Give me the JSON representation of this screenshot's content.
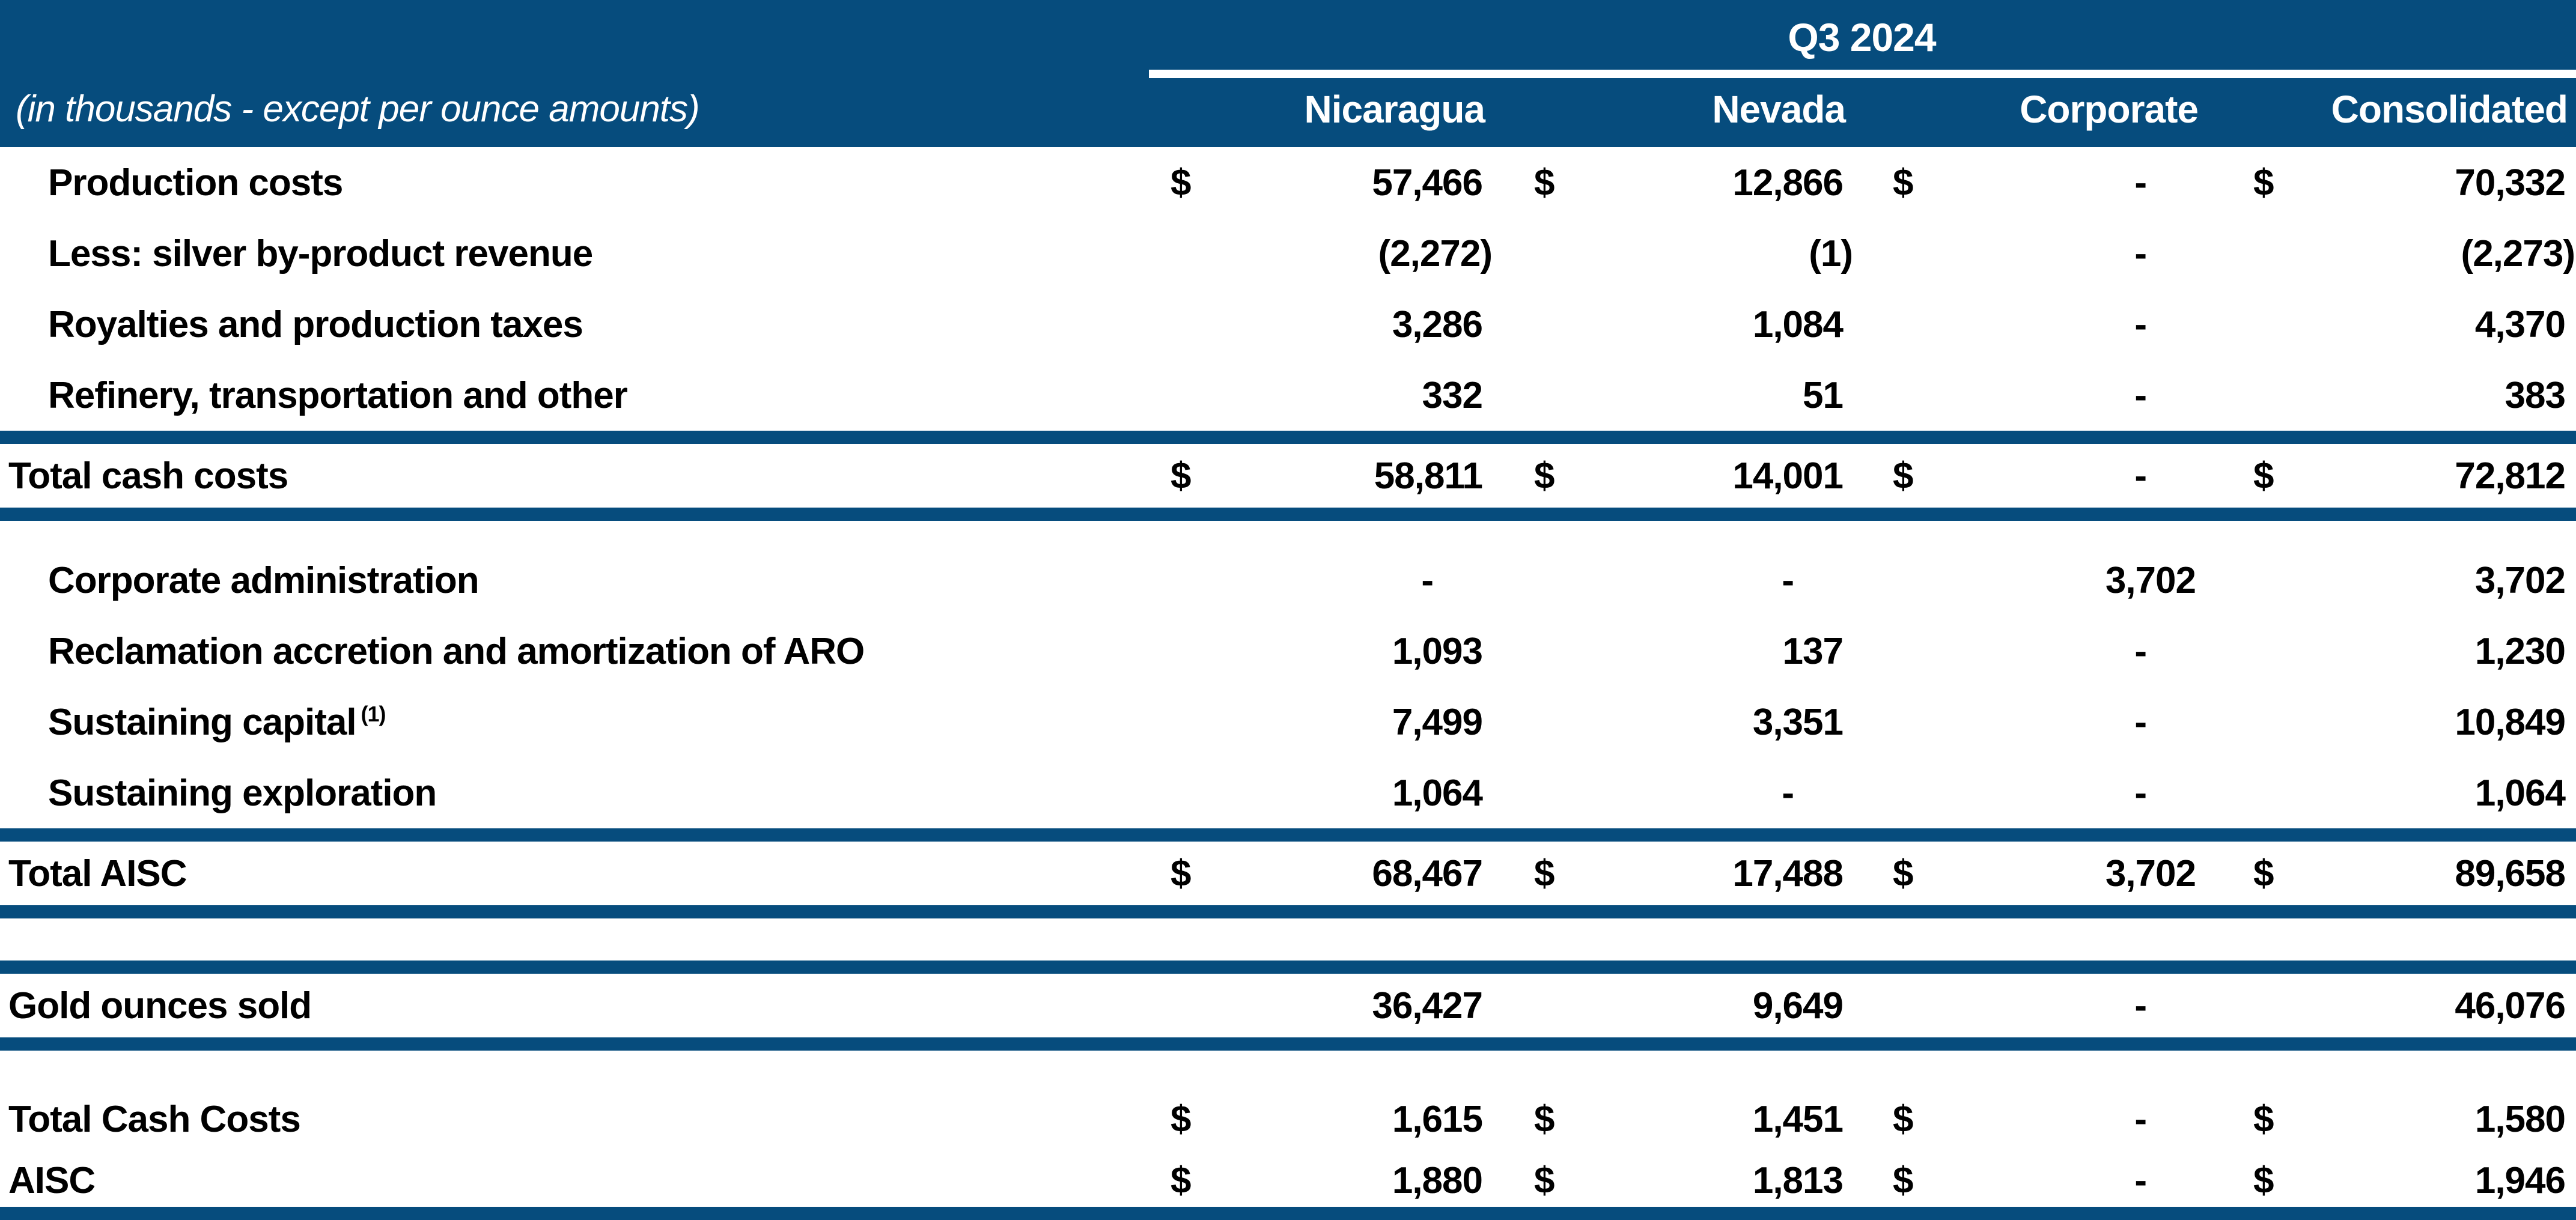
{
  "header": {
    "caption": "(in thousands - except per ounce amounts)",
    "period": "Q3 2024",
    "columns": [
      "Nicaragua",
      "Nevada",
      "Corporate",
      "Consolidated"
    ]
  },
  "colors": {
    "band_blue": "#064C7D",
    "text": "#000000",
    "background": "#FFFFFF"
  },
  "rows": [
    {
      "type": "item",
      "label": "Production costs",
      "cells": [
        {
          "d": "$",
          "v": "57,466"
        },
        {
          "d": "$",
          "v": "12,866"
        },
        {
          "d": "$",
          "v": "-",
          "dash": true
        },
        {
          "d": "$",
          "v": "70,332"
        }
      ]
    },
    {
      "type": "item",
      "label": "Less: silver by-product revenue",
      "cells": [
        {
          "v": "(2,272)",
          "neg": true
        },
        {
          "v": "(1)",
          "neg": true
        },
        {
          "v": "-",
          "dash": true
        },
        {
          "v": "(2,273)",
          "neg": true
        }
      ]
    },
    {
      "type": "item",
      "label": "Royalties and production taxes",
      "cells": [
        {
          "v": "3,286"
        },
        {
          "v": "1,084"
        },
        {
          "v": "-",
          "dash": true
        },
        {
          "v": "4,370"
        }
      ]
    },
    {
      "type": "item",
      "label": "Refinery, transportation and other",
      "cells": [
        {
          "v": "332"
        },
        {
          "v": "51"
        },
        {
          "v": "-",
          "dash": true
        },
        {
          "v": "383"
        }
      ]
    },
    {
      "type": "line"
    },
    {
      "type": "total",
      "label": "Total cash costs",
      "cells": [
        {
          "d": "$",
          "v": "58,811"
        },
        {
          "d": "$",
          "v": "14,001"
        },
        {
          "d": "$",
          "v": "-",
          "dash": true
        },
        {
          "d": "$",
          "v": "72,812"
        }
      ]
    },
    {
      "type": "line"
    },
    {
      "type": "spacer-a"
    },
    {
      "type": "item",
      "label": "Corporate administration",
      "cells": [
        {
          "v": "-",
          "dash": true
        },
        {
          "v": "-",
          "dash": true
        },
        {
          "v": "3,702"
        },
        {
          "v": "3,702"
        }
      ]
    },
    {
      "type": "item",
      "label": "Reclamation accretion and amortization of ARO",
      "cells": [
        {
          "v": "1,093"
        },
        {
          "v": "137"
        },
        {
          "v": "-",
          "dash": true
        },
        {
          "v": "1,230"
        }
      ]
    },
    {
      "type": "item",
      "label": "Sustaining capital",
      "sup": "(1)",
      "cells": [
        {
          "v": "7,499"
        },
        {
          "v": "3,351"
        },
        {
          "v": "-",
          "dash": true
        },
        {
          "v": "10,849"
        }
      ]
    },
    {
      "type": "item",
      "label": "Sustaining exploration",
      "cells": [
        {
          "v": "1,064"
        },
        {
          "v": "-",
          "dash": true
        },
        {
          "v": "-",
          "dash": true
        },
        {
          "v": "1,064"
        }
      ]
    },
    {
      "type": "line"
    },
    {
      "type": "total",
      "label": "Total AISC",
      "cells": [
        {
          "d": "$",
          "v": "68,467"
        },
        {
          "d": "$",
          "v": "17,488"
        },
        {
          "d": "$",
          "v": "3,702"
        },
        {
          "d": "$",
          "v": "89,658"
        }
      ]
    },
    {
      "type": "line"
    },
    {
      "type": "spacer-b"
    },
    {
      "type": "line"
    },
    {
      "type": "total",
      "label": "Gold ounces sold",
      "cells": [
        {
          "v": "36,427"
        },
        {
          "v": "9,649"
        },
        {
          "v": "-",
          "dash": true
        },
        {
          "v": "46,076"
        }
      ]
    },
    {
      "type": "line"
    },
    {
      "type": "spacer-c"
    },
    {
      "type": "metric",
      "label": "Total Cash Costs",
      "cells": [
        {
          "d": "$",
          "v": "1,615"
        },
        {
          "d": "$",
          "v": "1,451"
        },
        {
          "d": "$",
          "v": "-",
          "dash": true
        },
        {
          "d": "$",
          "v": "1,580"
        }
      ]
    },
    {
      "type": "metric-last",
      "label": "AISC",
      "cells": [
        {
          "d": "$",
          "v": "1,880"
        },
        {
          "d": "$",
          "v": "1,813"
        },
        {
          "d": "$",
          "v": "-",
          "dash": true
        },
        {
          "d": "$",
          "v": "1,946"
        }
      ]
    },
    {
      "type": "line"
    }
  ]
}
